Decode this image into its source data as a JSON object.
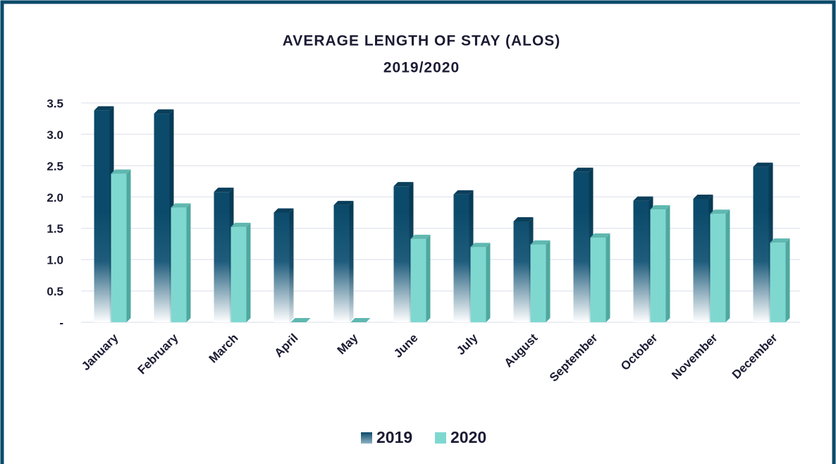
{
  "chart_data": {
    "type": "bar",
    "title": "AVERAGE LENGTH OF STAY (ALOS)",
    "subtitle": "2019/2020",
    "categories": [
      "January",
      "February",
      "March",
      "April",
      "May",
      "June",
      "July",
      "August",
      "September",
      "October",
      "November",
      "December"
    ],
    "series": [
      {
        "name": "2019",
        "color": "#0b4a6a",
        "values": [
          3.38,
          3.33,
          2.08,
          1.75,
          1.87,
          2.17,
          2.04,
          1.61,
          2.4,
          1.94,
          1.97,
          2.48
        ]
      },
      {
        "name": "2020",
        "color": "#7fd8d0",
        "values": [
          2.37,
          1.83,
          1.52,
          0,
          0,
          1.33,
          1.2,
          1.24,
          1.35,
          1.8,
          1.73,
          1.27
        ]
      }
    ],
    "ylim": [
      0,
      3.5
    ],
    "yticks": [
      {
        "value": 0,
        "label": "-"
      },
      0.5,
      {
        "value": 1,
        "label": "1.0"
      },
      1.5,
      {
        "value": 2,
        "label": "2.0"
      },
      2.5,
      {
        "value": 3,
        "label": "3.0"
      },
      3.5
    ],
    "grid": true,
    "legend": "bottom"
  }
}
